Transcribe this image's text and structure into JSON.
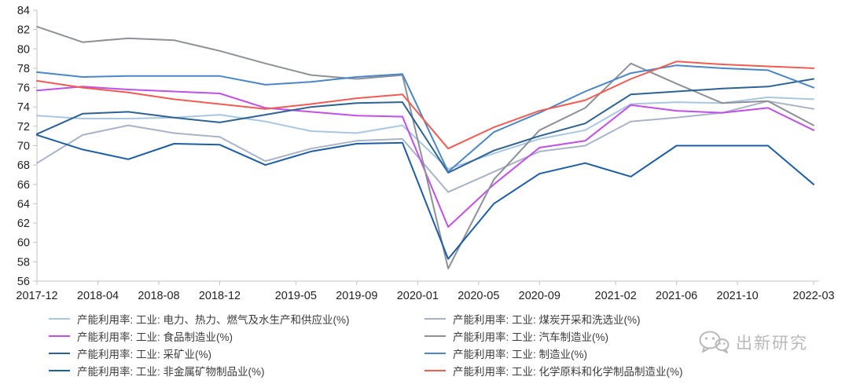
{
  "chart_data": {
    "type": "line",
    "title": "",
    "xlabel": "",
    "ylabel": "",
    "ylim": [
      56,
      84
    ],
    "y_tick_step": 2,
    "grid": false,
    "legend_position": "bottom",
    "x_unit": "month-index from 2017-12",
    "x_tick_months": [
      0,
      4,
      8,
      12,
      17,
      21,
      25,
      29,
      33,
      38,
      42,
      46,
      51
    ],
    "x_tick_labels": [
      "2017-12",
      "2018-04",
      "2018-08",
      "2018-12",
      "2019-05",
      "2019-09",
      "2020-01",
      "2020-05",
      "2020-09",
      "2021-02",
      "2021-06",
      "2021-10",
      "2022-03"
    ],
    "quarters": [
      "2017-12",
      "2018-03",
      "2018-06",
      "2018-09",
      "2018-12",
      "2019-03",
      "2019-06",
      "2019-09",
      "2019-12",
      "2020-03",
      "2020-06",
      "2020-09",
      "2020-12",
      "2021-03",
      "2021-06",
      "2021-09",
      "2021-12",
      "2022-03"
    ],
    "quarter_months": [
      0,
      3,
      6,
      9,
      12,
      15,
      18,
      21,
      24,
      27,
      30,
      33,
      36,
      39,
      42,
      45,
      48,
      51
    ],
    "series": [
      {
        "name": "产能利用率: 工业: 电力、热力、燃气及水生产和供应业(%)",
        "color": "#a9c6e2",
        "legend_col": 0,
        "legend_row": 0,
        "values": [
          73.1,
          72.8,
          72.8,
          72.9,
          73.2,
          72.5,
          71.5,
          71.3,
          72.1,
          67.6,
          69.2,
          70.7,
          71.6,
          74.3,
          74.5,
          74.4,
          75.0,
          74.8
        ]
      },
      {
        "name": "产能利用率: 工业: 煤炭开采和洗选业(%)",
        "color": "#a9b3c8",
        "legend_col": 1,
        "legend_row": 0,
        "values": [
          68.2,
          71.1,
          72.1,
          71.3,
          70.9,
          68.4,
          69.7,
          70.5,
          70.7,
          65.2,
          67.3,
          69.4,
          70.0,
          72.5,
          72.9,
          73.4,
          74.6,
          73.8
        ]
      },
      {
        "name": "产能利用率: 工业: 食品制造业(%)",
        "color": "#c14fe8",
        "legend_col": 0,
        "legend_row": 1,
        "values": [
          75.7,
          76.1,
          75.8,
          75.6,
          75.4,
          73.9,
          73.5,
          73.1,
          73.0,
          61.6,
          66.0,
          69.8,
          70.5,
          74.2,
          73.6,
          73.4,
          73.9,
          71.6
        ]
      },
      {
        "name": "产能利用率: 工业: 汽车制造业(%)",
        "color": "#8d9197",
        "legend_col": 1,
        "legend_row": 1,
        "values": [
          82.3,
          80.7,
          81.1,
          80.9,
          79.8,
          78.5,
          77.3,
          76.9,
          77.3,
          57.3,
          66.5,
          71.6,
          73.9,
          78.5,
          76.4,
          74.4,
          74.6,
          72.1
        ]
      },
      {
        "name": "产能利用率: 工业: 采矿业(%)",
        "color": "#2d6294",
        "legend_col": 0,
        "legend_row": 2,
        "values": [
          71.2,
          73.3,
          73.5,
          72.9,
          72.4,
          73.2,
          74.0,
          74.4,
          74.5,
          67.2,
          69.5,
          71.0,
          72.3,
          75.3,
          75.6,
          75.9,
          76.1,
          76.9
        ]
      },
      {
        "name": "产能利用率: 工业: 制造业(%)",
        "color": "#4a86c8",
        "legend_col": 1,
        "legend_row": 2,
        "values": [
          77.6,
          77.1,
          77.2,
          77.2,
          77.2,
          76.3,
          76.6,
          77.1,
          77.4,
          67.3,
          71.4,
          73.4,
          75.6,
          77.5,
          78.3,
          78.0,
          77.8,
          76.0
        ]
      },
      {
        "name": "产能利用率: 工业: 非金属矿物制品业(%)",
        "color": "#1c5da5",
        "legend_col": 0,
        "legend_row": 3,
        "values": [
          71.1,
          69.6,
          68.6,
          70.2,
          70.1,
          68.0,
          69.4,
          70.2,
          70.3,
          58.3,
          64.0,
          67.1,
          68.2,
          66.8,
          70.0,
          70.0,
          70.0,
          66.0
        ]
      },
      {
        "name": "产能利用率: 工业: 化学原料和化学制品制造业(%)",
        "color": "#f25b52",
        "legend_col": 1,
        "legend_row": 3,
        "values": [
          76.7,
          76.0,
          75.5,
          74.8,
          74.3,
          73.8,
          74.3,
          74.9,
          75.3,
          69.7,
          71.9,
          73.6,
          74.7,
          76.9,
          78.7,
          78.4,
          78.2,
          78.0
        ]
      }
    ],
    "axis_color": "#c3c3c3"
  },
  "watermark": {
    "text": "出新研究",
    "icon": "wechat-icon",
    "color": "#b9b9b9"
  }
}
